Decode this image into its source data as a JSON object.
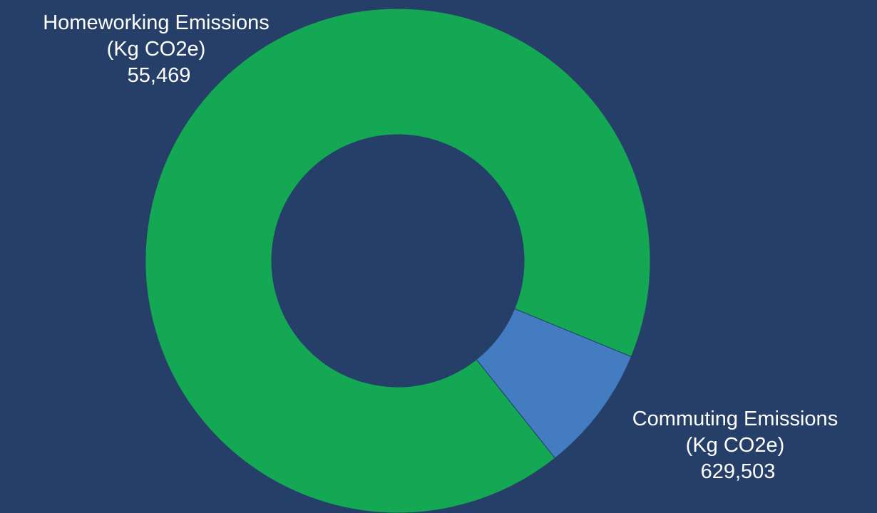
{
  "colors": {
    "background": "#263f69",
    "slice_stroke": "#263f69"
  },
  "chart_data": {
    "type": "pie",
    "variant": "donut",
    "slices": [
      {
        "name": "Homeworking Emissions",
        "unit": "(Kg CO2e)",
        "value": 55469,
        "display_value": "55,469",
        "color": "#447cc2"
      },
      {
        "name": "Commuting Emissions",
        "unit": "(Kg CO2e)",
        "value": 629503,
        "display_value": "629,503",
        "color": "#14a754"
      }
    ],
    "start_angle_deg": -51.5,
    "direction": "counter-clockwise",
    "title": "",
    "legend": "none",
    "labels": "outside"
  }
}
